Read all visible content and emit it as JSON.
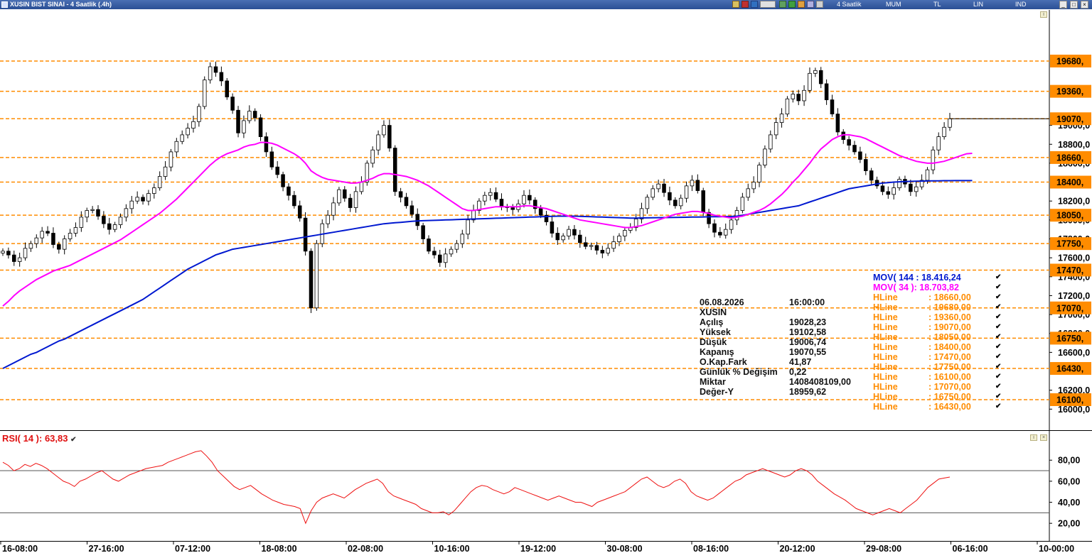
{
  "window": {
    "title": "XUSIN BIST SINAI - 4 Saatlik (.4h)",
    "toolbar": {
      "period": "4 Saatlik",
      "chart_style": "MUM",
      "currency": "TL",
      "scale": "LIN",
      "indicators": "IND",
      "window_buttons": [
        "_",
        "□",
        "×"
      ]
    },
    "colors": {
      "candle_up": "#ffffff",
      "candle_down": "#000000",
      "mov144": "#0018d0",
      "mov34": "#ff00ff",
      "hline": "#ff8c00",
      "rsi": "#ee1111"
    }
  },
  "chart_data": [
    {
      "type": "candlestick",
      "title": "XUSIN BIST SINAI - 4 Saatlik (.4h)",
      "x_tick_labels": [
        "16-08:00",
        "27-16:00",
        "07-12:00",
        "18-08:00",
        "02-08:00",
        "10-16:00",
        "19-12:00",
        "30-08:00",
        "08-16:00",
        "20-12:00",
        "29-08:00",
        "06-16:00",
        "10-00:00"
      ],
      "y_tick_labels": [
        "19000,0",
        "18800,0",
        "18600,0",
        "18200,0",
        "18000,0",
        "17800,0",
        "17600,0",
        "17400,0",
        "17200,0",
        "17000,0",
        "16800,0",
        "16600,0",
        "16200,0",
        "16000,0"
      ],
      "ylim": [
        15950,
        19950
      ],
      "grid": false,
      "last_price": 19070.55,
      "closes": [
        17670,
        17630,
        17560,
        17600,
        17700,
        17750,
        17810,
        17880,
        17860,
        17740,
        17690,
        17800,
        17860,
        17920,
        18030,
        18100,
        18110,
        18040,
        17960,
        17900,
        17950,
        18030,
        18120,
        18200,
        18240,
        18200,
        18280,
        18340,
        18460,
        18560,
        18720,
        18830,
        18900,
        18970,
        19040,
        19200,
        19480,
        19620,
        19560,
        19470,
        19300,
        19160,
        18920,
        19050,
        19150,
        19080,
        18880,
        18720,
        18560,
        18480,
        18350,
        18260,
        18150,
        18020,
        17670,
        17070,
        17750,
        17960,
        18050,
        18180,
        18320,
        18230,
        18130,
        18300,
        18400,
        18600,
        18740,
        18900,
        19000,
        18760,
        18300,
        18240,
        18150,
        18060,
        17940,
        17800,
        17670,
        17630,
        17550,
        17640,
        17690,
        17750,
        17850,
        18000,
        18100,
        18200,
        18260,
        18290,
        18220,
        18140,
        18130,
        18110,
        18170,
        18260,
        18210,
        18120,
        18050,
        17980,
        17860,
        17790,
        17830,
        17900,
        17840,
        17760,
        17720,
        17730,
        17680,
        17650,
        17700,
        17770,
        17830,
        17890,
        17920,
        18010,
        18120,
        18240,
        18330,
        18380,
        18290,
        18210,
        18150,
        18230,
        18360,
        18420,
        18310,
        18080,
        17960,
        17870,
        17840,
        17900,
        18000,
        18100,
        18240,
        18330,
        18400,
        18580,
        18750,
        18900,
        19030,
        19120,
        19280,
        19330,
        19260,
        19370,
        19550,
        19580,
        19440,
        19270,
        19120,
        18930,
        18850,
        18790,
        18720,
        18640,
        18520,
        18420,
        18360,
        18300,
        18270,
        18340,
        18430,
        18380,
        18300,
        18350,
        18420,
        18530,
        18740,
        18880,
        18980,
        19070
      ],
      "series": [
        {
          "name": "MOV( 144 : 18.416,24",
          "values": [
            16430,
            16460,
            16490,
            16520,
            16550,
            16580,
            16600,
            16630,
            16660,
            16690,
            16720,
            16740,
            16770,
            16800,
            16830,
            16860,
            16890,
            16920,
            16950,
            16980,
            17010,
            17040,
            17070,
            17100,
            17130,
            17160,
            17200,
            17240,
            17280,
            17320,
            17360,
            17400,
            17440,
            17480,
            17510,
            17540,
            17570,
            17600,
            17630,
            17650,
            17670,
            17690,
            17700,
            17710,
            17720,
            17730,
            17740,
            17750,
            17760,
            17770,
            17780,
            17790,
            17800,
            17810,
            17820,
            17830,
            17840,
            17850,
            17860,
            17870,
            17880,
            17890,
            17900,
            17910,
            17920,
            17930,
            17940,
            17950,
            17960,
            17965,
            17970,
            17975,
            17980,
            17985,
            17990,
            17992,
            17994,
            17996,
            17998,
            18000,
            18002,
            18004,
            18006,
            18008,
            18010,
            18012,
            18014,
            18016,
            18018,
            18020,
            18022,
            18024,
            18026,
            18028,
            18030,
            18032,
            18034,
            18036,
            18038,
            18040,
            18040,
            18040,
            18040,
            18038,
            18036,
            18034,
            18032,
            18030,
            18028,
            18026,
            18024,
            18022,
            18020,
            18020,
            18021,
            18022,
            18023,
            18024,
            18025,
            18026,
            18027,
            18028,
            18029,
            18030,
            18031,
            18032,
            18033,
            18034,
            18035,
            18036,
            18037,
            18040,
            18050,
            18060,
            18070,
            18080,
            18090,
            18100,
            18110,
            18120,
            18130,
            18140,
            18150,
            18170,
            18190,
            18210,
            18230,
            18250,
            18270,
            18290,
            18310,
            18330,
            18340,
            18350,
            18360,
            18370,
            18380,
            18390,
            18395,
            18400,
            18403,
            18406,
            18408,
            18410,
            18411,
            18412,
            18413,
            18414,
            18415,
            18415,
            18416,
            18416,
            18416,
            18416
          ]
        },
        {
          "name": "MOV( 34 ): 18.703,82",
          "values": [
            17090,
            17140,
            17200,
            17250,
            17290,
            17330,
            17370,
            17400,
            17430,
            17460,
            17480,
            17500,
            17520,
            17550,
            17580,
            17610,
            17640,
            17670,
            17700,
            17730,
            17760,
            17790,
            17830,
            17870,
            17910,
            17950,
            17990,
            18030,
            18070,
            18120,
            18170,
            18220,
            18280,
            18340,
            18400,
            18460,
            18520,
            18580,
            18630,
            18670,
            18700,
            18720,
            18740,
            18770,
            18790,
            18800,
            18820,
            18820,
            18810,
            18790,
            18760,
            18730,
            18700,
            18660,
            18600,
            18520,
            18480,
            18450,
            18430,
            18420,
            18410,
            18400,
            18390,
            18390,
            18400,
            18420,
            18440,
            18470,
            18490,
            18490,
            18480,
            18470,
            18460,
            18440,
            18420,
            18390,
            18360,
            18320,
            18280,
            18240,
            18200,
            18160,
            18120,
            18100,
            18100,
            18110,
            18120,
            18130,
            18140,
            18140,
            18140,
            18140,
            18140,
            18150,
            18150,
            18140,
            18130,
            18120,
            18100,
            18080,
            18060,
            18040,
            18020,
            18000,
            17990,
            17980,
            17970,
            17960,
            17950,
            17940,
            17930,
            17920,
            17920,
            17930,
            17940,
            17960,
            17980,
            18000,
            18020,
            18040,
            18060,
            18070,
            18080,
            18090,
            18090,
            18080,
            18070,
            18050,
            18040,
            18030,
            18020,
            18030,
            18040,
            18060,
            18080,
            18100,
            18130,
            18170,
            18220,
            18270,
            18330,
            18400,
            18460,
            18530,
            18600,
            18680,
            18750,
            18800,
            18850,
            18880,
            18900,
            18900,
            18890,
            18880,
            18860,
            18830,
            18800,
            18770,
            18740,
            18710,
            18680,
            18660,
            18640,
            18620,
            18610,
            18600,
            18600,
            18610,
            18620,
            18640,
            18660,
            18680,
            18700,
            18704
          ]
        }
      ],
      "horizontal_lines": [
        {
          "name": "HLine",
          "value": 18660.0
        },
        {
          "name": "HLine",
          "value": 19680.0
        },
        {
          "name": "HLine",
          "value": 19360.0
        },
        {
          "name": "HLine",
          "value": 19070.0
        },
        {
          "name": "HLine",
          "value": 18050.0
        },
        {
          "name": "HLine",
          "value": 18400.0
        },
        {
          "name": "HLine",
          "value": 17470.0
        },
        {
          "name": "HLine",
          "value": 17750.0
        },
        {
          "name": "HLine",
          "value": 16100.0
        },
        {
          "name": "HLine",
          "value": 17070.0
        },
        {
          "name": "HLine",
          "value": 16750.0
        },
        {
          "name": "HLine",
          "value": 16430.0
        }
      ],
      "hline_labels": [
        "19680,",
        "19360,",
        "19070,",
        "18660,",
        "18400,",
        "18050,",
        "17750,",
        "17470,",
        "17070,",
        "16750,",
        "16430,",
        "16100,"
      ]
    },
    {
      "type": "line",
      "title": "RSI( 14 ): 63,83",
      "ylim": [
        10,
        95
      ],
      "y_tick_labels": [
        "80,00",
        "60,00",
        "40,00",
        "20,00"
      ],
      "bands": [
        70,
        30
      ],
      "series": [
        {
          "name": "RSI( 14 ): 63,83",
          "values": [
            78,
            75,
            70,
            72,
            76,
            74,
            77,
            75,
            72,
            68,
            64,
            60,
            58,
            55,
            60,
            62,
            65,
            68,
            70,
            66,
            62,
            60,
            63,
            66,
            68,
            70,
            72,
            73,
            74,
            75,
            78,
            80,
            82,
            84,
            86,
            88,
            89,
            84,
            78,
            70,
            65,
            60,
            55,
            52,
            54,
            56,
            52,
            48,
            45,
            42,
            40,
            38,
            37,
            36,
            34,
            20,
            32,
            40,
            44,
            46,
            48,
            46,
            44,
            48,
            52,
            55,
            58,
            60,
            62,
            58,
            50,
            46,
            44,
            42,
            40,
            38,
            34,
            32,
            30,
            30,
            31,
            28,
            32,
            38,
            44,
            50,
            54,
            56,
            55,
            52,
            50,
            48,
            50,
            54,
            52,
            50,
            48,
            46,
            44,
            42,
            44,
            46,
            44,
            42,
            40,
            40,
            38,
            36,
            40,
            42,
            44,
            46,
            48,
            50,
            54,
            58,
            62,
            64,
            60,
            56,
            54,
            56,
            60,
            62,
            58,
            50,
            46,
            44,
            42,
            44,
            48,
            52,
            56,
            60,
            62,
            66,
            68,
            70,
            72,
            70,
            68,
            66,
            64,
            66,
            70,
            72,
            70,
            66,
            60,
            56,
            52,
            48,
            45,
            42,
            38,
            34,
            32,
            30,
            28,
            30,
            32,
            34,
            32,
            30,
            34,
            38,
            42,
            48,
            54,
            58,
            62,
            63,
            64
          ]
        }
      ]
    }
  ],
  "info_panel": [
    {
      "label": "06.08.2026",
      "value": "16:00:00"
    },
    {
      "label": "XUSIN",
      "value": ""
    },
    {
      "label": "Açılış",
      "value": "19028,23"
    },
    {
      "label": "Yüksek",
      "value": "19102,58"
    },
    {
      "label": "Düşük",
      "value": "19006,74"
    },
    {
      "label": "Kapanış",
      "value": "19070,55"
    },
    {
      "label": "O.Kap.Fark",
      "value": "41,87"
    },
    {
      "label": "Günlük % Değişim",
      "value": "0,22"
    },
    {
      "label": "Miktar",
      "value": "1408408109,00"
    },
    {
      "label": "Değer-Y",
      "value": "18959,62"
    }
  ],
  "legend": [
    {
      "name": "MOV( 144 : 18.416,24",
      "color": "#0018d0"
    },
    {
      "name": "MOV( 34 ): 18.703,82",
      "color": "#ff00ff"
    },
    {
      "name": "HLine",
      "value": ": 18660,00",
      "color": "#ff8c00"
    },
    {
      "name": "HLine",
      "value": ": 19680,00",
      "color": "#ff8c00"
    },
    {
      "name": "HLine",
      "value": ": 19360,00",
      "color": "#ff8c00"
    },
    {
      "name": "HLine",
      "value": ": 19070,00",
      "color": "#ff8c00"
    },
    {
      "name": "HLine",
      "value": ": 18050,00",
      "color": "#ff8c00"
    },
    {
      "name": "HLine",
      "value": ": 18400,00",
      "color": "#ff8c00"
    },
    {
      "name": "HLine",
      "value": ": 17470,00",
      "color": "#ff8c00"
    },
    {
      "name": "HLine",
      "value": ": 17750,00",
      "color": "#ff8c00"
    },
    {
      "name": "HLine",
      "value": ": 16100,00",
      "color": "#ff8c00"
    },
    {
      "name": "HLine",
      "value": ": 17070,00",
      "color": "#ff8c00"
    },
    {
      "name": "HLine",
      "value": ": 16750,00",
      "color": "#ff8c00"
    },
    {
      "name": "HLine",
      "value": ": 16430,00",
      "color": "#ff8c00"
    }
  ]
}
